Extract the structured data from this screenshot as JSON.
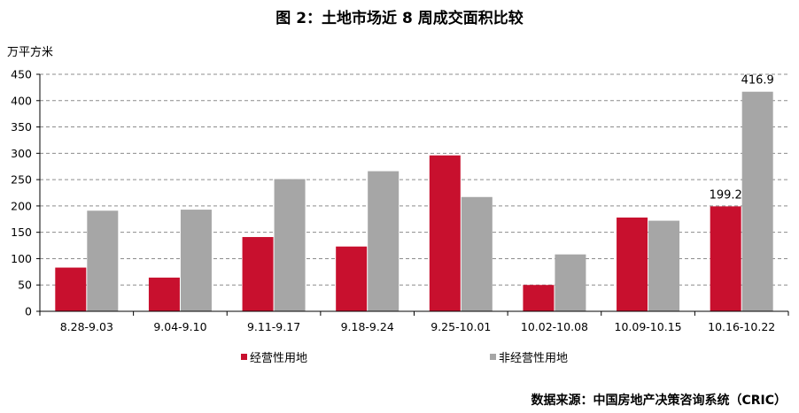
{
  "title": "图 2：土地市场近 8 周成交面积比较",
  "source": "数据来源：中国房地产决策咨询系统（CRIC）",
  "colors": {
    "series1": "#c8102e",
    "series2": "#a6a6a6",
    "grid": "#8c8c8c",
    "axis": "#000000"
  },
  "chart_data": {
    "type": "bar",
    "ylabel": "万平方米",
    "ylim": [
      0,
      450
    ],
    "yticks": [
      0,
      50,
      100,
      150,
      200,
      250,
      300,
      350,
      400,
      450
    ],
    "grid": "horizontal-dashed",
    "legend": "bottom",
    "categories": [
      "8.28-9.03",
      "9.04-9.10",
      "9.11-9.17",
      "9.18-9.24",
      "9.25-10.01",
      "10.02-10.08",
      "10.09-10.15",
      "10.16-10.22"
    ],
    "series": [
      {
        "name": "经营性用地",
        "values": [
          83,
          64,
          141,
          123,
          296,
          50,
          178,
          199.2
        ]
      },
      {
        "name": "非经营性用地",
        "values": [
          191,
          193,
          251,
          266,
          217,
          108,
          172,
          416.9
        ]
      }
    ],
    "data_labels": [
      {
        "series": 0,
        "index": 7,
        "text": "199.2"
      },
      {
        "series": 1,
        "index": 7,
        "text": "416.9"
      }
    ]
  }
}
